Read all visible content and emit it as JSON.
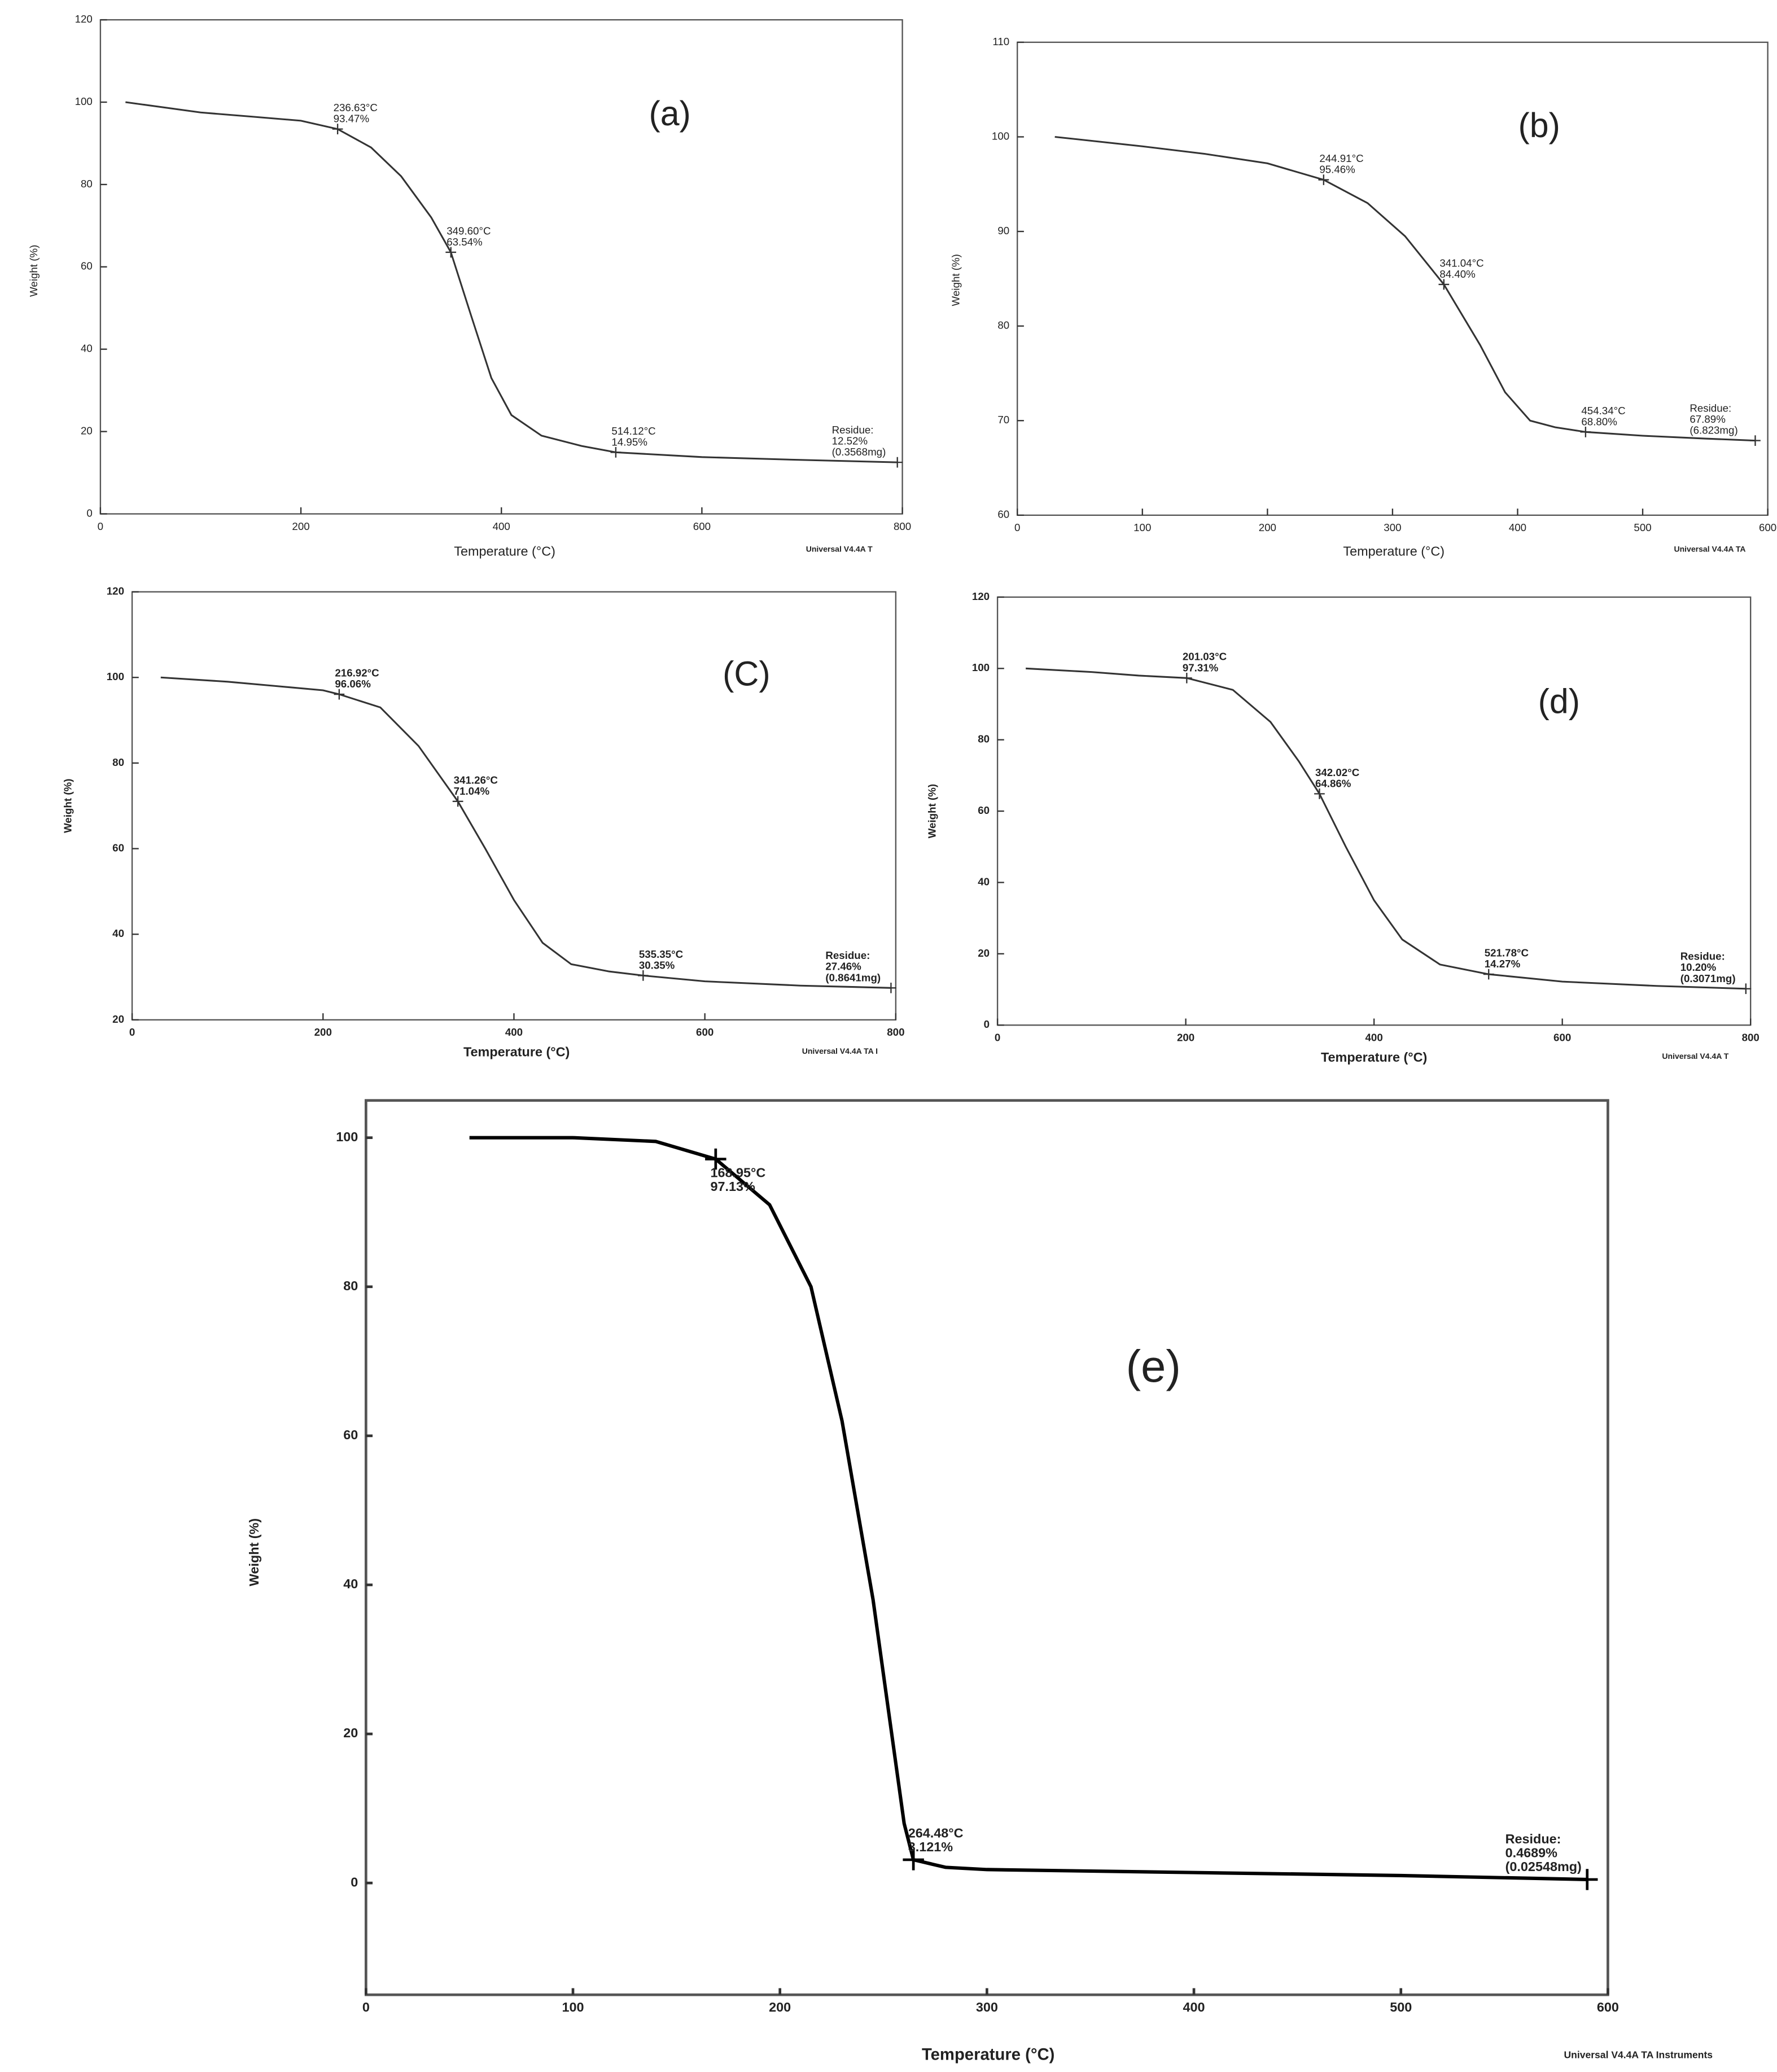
{
  "chart_data": [
    {
      "type": "line",
      "panel_label": "(a)",
      "x_label": "Temperature (°C)",
      "y_label": "Weight (%)",
      "footer": "Universal V4.4A T",
      "color": "#333333",
      "x": [
        25,
        100,
        150,
        200,
        236.63,
        270,
        300,
        330,
        349.6,
        370,
        390,
        410,
        440,
        480,
        514.12,
        600,
        700,
        795
      ],
      "values": [
        100,
        97.5,
        96.5,
        95.5,
        93.47,
        89,
        82,
        72,
        63.54,
        48,
        33,
        24,
        19,
        16.5,
        14.95,
        13.8,
        13.1,
        12.52
      ],
      "xlim": [
        0,
        800
      ],
      "ylim": [
        0,
        120
      ],
      "xticks": [
        0,
        200,
        400,
        600,
        800
      ],
      "yticks": [
        0,
        20,
        40,
        60,
        80,
        100,
        120
      ],
      "annotations": [
        {
          "x": 236.63,
          "y": 93.47,
          "label": [
            "236.63°C",
            "93.47%"
          ]
        },
        {
          "x": 349.6,
          "y": 63.54,
          "label": [
            "349.60°C",
            "63.54%"
          ]
        },
        {
          "x": 514.12,
          "y": 14.95,
          "label": [
            "514.12°C",
            "14.95%"
          ]
        },
        {
          "x": 795,
          "y": 12.52,
          "label": [
            "Residue:",
            "12.52%",
            "(0.3568mg)"
          ]
        }
      ]
    },
    {
      "type": "line",
      "panel_label": "(b)",
      "x_label": "Temperature (°C)",
      "y_label": "Weight (%)",
      "footer": "Universal V4.4A TA",
      "color": "#333333",
      "x": [
        30,
        100,
        150,
        200,
        244.91,
        280,
        310,
        341.04,
        370,
        390,
        410,
        430,
        454.34,
        500,
        550,
        590
      ],
      "values": [
        100,
        99,
        98.2,
        97.2,
        95.46,
        93,
        89.5,
        84.4,
        78,
        73,
        70,
        69.3,
        68.8,
        68.4,
        68.1,
        67.89
      ],
      "xlim": [
        0,
        600
      ],
      "ylim": [
        60,
        110
      ],
      "xticks": [
        0,
        100,
        200,
        300,
        400,
        500,
        600
      ],
      "yticks": [
        60,
        70,
        80,
        90,
        100,
        110
      ],
      "annotations": [
        {
          "x": 244.91,
          "y": 95.46,
          "label": [
            "244.91°C",
            "95.46%"
          ]
        },
        {
          "x": 341.04,
          "y": 84.4,
          "label": [
            "341.04°C",
            "84.40%"
          ]
        },
        {
          "x": 454.34,
          "y": 68.8,
          "label": [
            "454.34°C",
            "68.80%"
          ]
        },
        {
          "x": 590,
          "y": 67.89,
          "label": [
            "Residue:",
            "67.89%",
            "(6.823mg)"
          ]
        }
      ]
    },
    {
      "type": "line",
      "panel_label": "(C)",
      "x_label": "Temperature (°C)",
      "y_label": "Weight (%)",
      "footer": "Universal V4.4A TA I",
      "color": "#333333",
      "x": [
        30,
        100,
        150,
        200,
        216.92,
        260,
        300,
        341.26,
        370,
        400,
        430,
        460,
        500,
        535.35,
        600,
        700,
        795
      ],
      "values": [
        100,
        99,
        98,
        97,
        96.06,
        93,
        84,
        71.04,
        60,
        48,
        38,
        33,
        31.3,
        30.35,
        29,
        28,
        27.46
      ],
      "xlim": [
        0,
        800
      ],
      "ylim": [
        20,
        120
      ],
      "xticks": [
        0,
        200,
        400,
        600,
        800
      ],
      "yticks": [
        20,
        40,
        60,
        80,
        100,
        120
      ],
      "annotations": [
        {
          "x": 216.92,
          "y": 96.06,
          "label": [
            "216.92°C",
            "96.06%"
          ]
        },
        {
          "x": 341.26,
          "y": 71.04,
          "label": [
            "341.26°C",
            "71.04%"
          ]
        },
        {
          "x": 535.35,
          "y": 30.35,
          "label": [
            "535.35°C",
            "30.35%"
          ]
        },
        {
          "x": 795,
          "y": 27.46,
          "label": [
            "Residue:",
            "27.46%",
            "(0.8641mg)"
          ]
        }
      ]
    },
    {
      "type": "line",
      "panel_label": "(d)",
      "x_label": "Temperature (°C)",
      "y_label": "Weight (%)",
      "footer": "Universal V4.4A T",
      "color": "#333333",
      "x": [
        30,
        100,
        150,
        201.03,
        250,
        290,
        320,
        342.02,
        370,
        400,
        430,
        470,
        521.78,
        600,
        700,
        795
      ],
      "values": [
        100,
        99,
        98,
        97.31,
        94,
        85,
        74,
        64.86,
        50,
        35,
        24,
        17,
        14.27,
        12.2,
        11,
        10.2
      ],
      "xlim": [
        0,
        800
      ],
      "ylim": [
        0,
        120
      ],
      "xticks": [
        0,
        200,
        400,
        600,
        800
      ],
      "yticks": [
        0,
        20,
        40,
        60,
        80,
        100,
        120
      ],
      "annotations": [
        {
          "x": 201.03,
          "y": 97.31,
          "label": [
            "201.03°C",
            "97.31%"
          ]
        },
        {
          "x": 342.02,
          "y": 64.86,
          "label": [
            "342.02°C",
            "64.86%"
          ]
        },
        {
          "x": 521.78,
          "y": 14.27,
          "label": [
            "521.78°C",
            "14.27%"
          ]
        },
        {
          "x": 795,
          "y": 10.2,
          "label": [
            "Residue:",
            "10.20%",
            "(0.3071mg)"
          ]
        }
      ]
    },
    {
      "type": "line",
      "panel_label": "(e)",
      "x_label": "Temperature (°C)",
      "y_label": "Weight (%)",
      "footer": "Universal V4.4A TA Instruments",
      "color": "#000000",
      "x": [
        50,
        100,
        140,
        168.95,
        195,
        215,
        230,
        245,
        255,
        260,
        264.48,
        280,
        300,
        400,
        500,
        590
      ],
      "values": [
        100,
        100,
        99.5,
        97.13,
        91,
        80,
        62,
        38,
        18,
        8,
        3.121,
        2.1,
        1.8,
        1.4,
        1,
        0.4689
      ],
      "xlim": [
        0,
        600
      ],
      "ylim": [
        -15,
        105
      ],
      "xticks": [
        0,
        100,
        200,
        300,
        400,
        500,
        600
      ],
      "yticks": [
        0,
        20,
        40,
        60,
        80,
        100
      ],
      "annotations": [
        {
          "x": 168.95,
          "y": 97.13,
          "label": [
            "168.95°C",
            "97.13%"
          ]
        },
        {
          "x": 264.48,
          "y": 3.121,
          "label": [
            "264.48°C",
            "3.121%"
          ]
        },
        {
          "x": 590,
          "y": 0.4689,
          "label": [
            "Residue:",
            "0.4689%",
            "(0.02548mg)"
          ]
        }
      ]
    }
  ]
}
